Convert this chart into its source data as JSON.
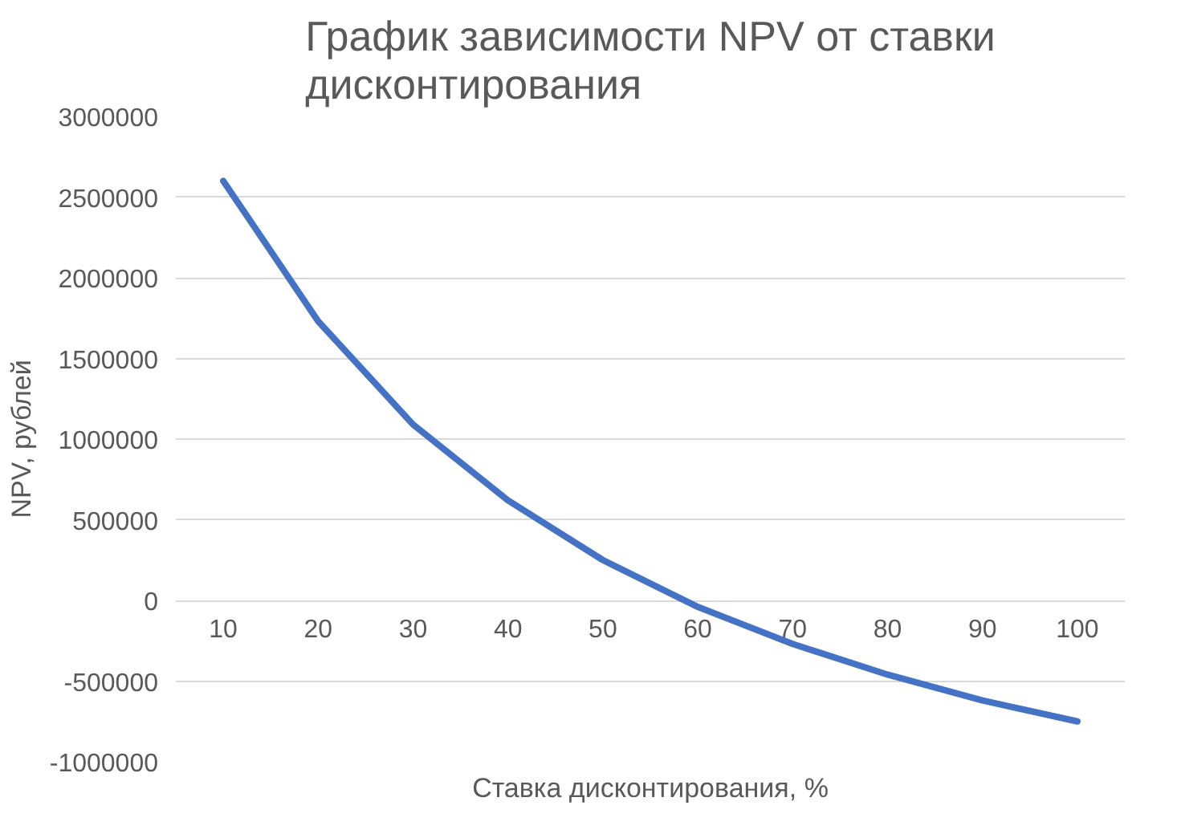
{
  "chart_data": {
    "type": "line",
    "title": "График зависимости NPV от ставки дисконтирования",
    "xlabel": "Ставка дисконтирования, %",
    "ylabel": "NPV, рублей",
    "categories": [
      "10",
      "20",
      "30",
      "40",
      "50",
      "60",
      "70",
      "80",
      "90",
      "100"
    ],
    "series": [
      {
        "color": "#4472c4",
        "values": [
          2600000,
          1730000,
          1090000,
          620000,
          250000,
          -40000,
          -270000,
          -460000,
          -620000,
          -750000
        ]
      }
    ],
    "ylim": [
      -1000000,
      3000000
    ],
    "yticks": [
      -1000000,
      -500000,
      0,
      500000,
      1000000,
      1500000,
      2000000,
      2500000,
      3000000
    ],
    "grid": "y",
    "marker": "none",
    "line_style": "solid"
  }
}
